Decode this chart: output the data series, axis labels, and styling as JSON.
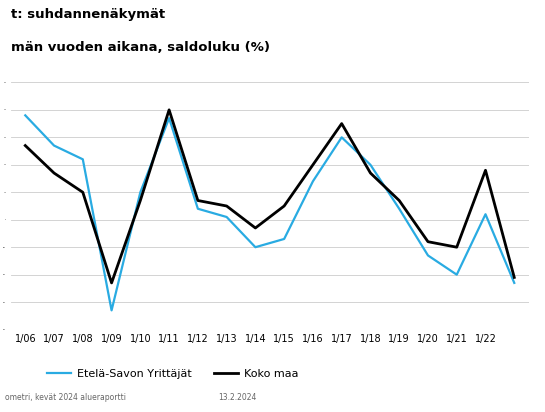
{
  "title_line1": "t: suhdannenäkymät",
  "title_line2": "män vuoden aikana, saldoluku (%)",
  "background_color": "#ffffff",
  "grid_color": "#cccccc",
  "x_labels": [
    "1/06",
    "1/07",
    "1/08",
    "1/09",
    "1/10",
    "1/11",
    "1/12",
    "1/13",
    "1/14",
    "1/15",
    "1/16",
    "1/17",
    "1/18",
    "1/19",
    "1/20",
    "1/21",
    "1/22",
    ""
  ],
  "etela_savo": [
    38,
    27,
    22,
    -33,
    10,
    37,
    4,
    1,
    -10,
    -7,
    14,
    30,
    20,
    4,
    -13,
    -20,
    2,
    -23
  ],
  "koko_maa": [
    27,
    17,
    10,
    -23,
    7,
    40,
    7,
    5,
    -3,
    5,
    20,
    35,
    17,
    7,
    -8,
    -10,
    18,
    -21
  ],
  "etela_color": "#29abe2",
  "koko_color": "#000000",
  "etela_label": "Etelä-Savon Yrittäjät",
  "koko_label": "Koko maa",
  "ylim": [
    -40,
    50
  ],
  "date_text": "13.2.2024",
  "footer_text": "ometri, kevät 2024 alueraportti"
}
